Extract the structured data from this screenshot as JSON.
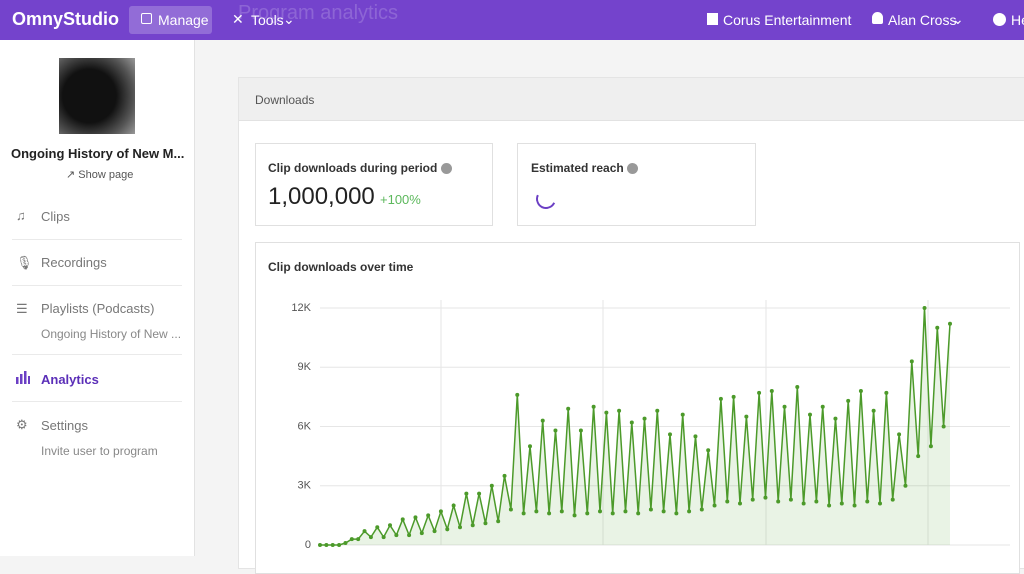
{
  "topbar": {
    "logo": "OmnyStudio",
    "nav": [
      "Manage",
      "Tools"
    ],
    "page_title": "Program analytics",
    "org": "Corus Entertainment",
    "user": "Alan Cross",
    "help": "He"
  },
  "sidebar": {
    "program": "Ongoing History of New M...",
    "show_page": "Show page",
    "menu": [
      {
        "label": "Clips"
      },
      {
        "label": "Recordings"
      },
      {
        "label": "Playlists (Podcasts)",
        "sub": "Ongoing History of New ..."
      },
      {
        "label": "Analytics",
        "active": true
      },
      {
        "label": "Settings",
        "sub": "Invite user to program"
      }
    ]
  },
  "panel": {
    "title": "Downloads",
    "cards": [
      {
        "title": "Clip downloads during period",
        "value": "1,000,000",
        "change": "+100%"
      },
      {
        "title": "Estimated reach"
      }
    ]
  },
  "chart_data": {
    "type": "line",
    "title": "Clip downloads over time",
    "color": "#4c9a2a",
    "area": true,
    "grid": true,
    "ylim": [
      0,
      12000
    ],
    "yticks": [
      0,
      {
        "value": 3000,
        "label": "3K"
      },
      {
        "value": 6000,
        "label": "6K"
      },
      {
        "value": 9000,
        "label": "9K"
      },
      {
        "value": 12000,
        "label": "12K"
      }
    ],
    "values": [
      0,
      0,
      0,
      0,
      100,
      300,
      300,
      700,
      400,
      900,
      400,
      1000,
      500,
      1300,
      500,
      1400,
      600,
      1500,
      700,
      1700,
      800,
      2000,
      900,
      2600,
      1000,
      2600,
      1100,
      3000,
      1200,
      3500,
      1800,
      7600,
      1600,
      5000,
      1700,
      6300,
      1600,
      5800,
      1700,
      6900,
      1500,
      5800,
      1600,
      7000,
      1700,
      6700,
      1600,
      6800,
      1700,
      6200,
      1600,
      6400,
      1800,
      6800,
      1700,
      5600,
      1600,
      6600,
      1700,
      5500,
      1800,
      4800,
      2000,
      7400,
      2200,
      7500,
      2100,
      6500,
      2300,
      7700,
      2400,
      7800,
      2200,
      7000,
      2300,
      8000,
      2100,
      6600,
      2200,
      7000,
      2000,
      6400,
      2100,
      7300,
      2000,
      7800,
      2200,
      6800,
      2100,
      7700,
      2300,
      5600,
      3000,
      9300,
      4500,
      12000,
      5000,
      11000,
      6000,
      11200
    ]
  }
}
